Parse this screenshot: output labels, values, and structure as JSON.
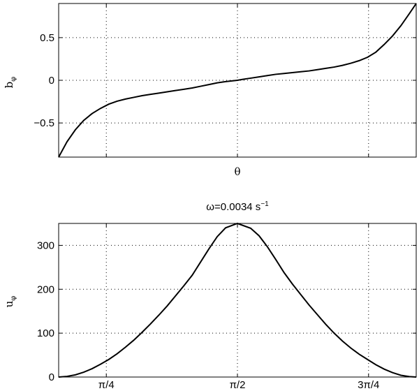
{
  "chart_data": [
    {
      "type": "line",
      "title": "",
      "xlabel": "θ",
      "ylabel_main": "b",
      "ylabel_sub": "φ",
      "xlim": [
        0.5,
        2.6416
      ],
      "ylim": [
        -0.9,
        0.9
      ],
      "xticks": [
        0.7854,
        1.5708,
        2.3562
      ],
      "xtick_labels": [],
      "yticks": [
        -0.5,
        0,
        0.5
      ],
      "ytick_labels": [
        "−0.5",
        "0",
        "0.5"
      ],
      "grid": true,
      "series": [
        {
          "x": [
            0.5,
            0.55,
            0.6,
            0.65,
            0.7,
            0.75,
            0.8,
            0.85,
            0.9,
            0.95,
            1.0,
            1.05,
            1.1,
            1.15,
            1.2,
            1.25,
            1.3,
            1.35,
            1.4,
            1.45,
            1.5,
            1.5708,
            1.6,
            1.65,
            1.7,
            1.75,
            1.8,
            1.85,
            1.9,
            1.95,
            2.0,
            2.05,
            2.1,
            2.15,
            2.2,
            2.25,
            2.3,
            2.35,
            2.4,
            2.45,
            2.5,
            2.55,
            2.6,
            2.6416
          ],
          "y": [
            -0.9,
            -0.72,
            -0.58,
            -0.47,
            -0.39,
            -0.33,
            -0.28,
            -0.245,
            -0.22,
            -0.2,
            -0.18,
            -0.165,
            -0.15,
            -0.135,
            -0.12,
            -0.105,
            -0.09,
            -0.07,
            -0.05,
            -0.03,
            -0.015,
            0.0,
            0.01,
            0.025,
            0.04,
            0.055,
            0.07,
            0.08,
            0.09,
            0.1,
            0.11,
            0.125,
            0.14,
            0.155,
            0.175,
            0.2,
            0.23,
            0.27,
            0.33,
            0.42,
            0.52,
            0.64,
            0.78,
            0.9
          ]
        }
      ]
    },
    {
      "type": "line",
      "title_prefix": "ω=0.0034 s",
      "title_sup": "−1",
      "xlabel": "",
      "ylabel_main": "u",
      "ylabel_sub": "φ",
      "xlim": [
        0.5,
        2.6416
      ],
      "ylim": [
        0,
        350
      ],
      "xticks": [
        0.7854,
        1.5708,
        2.3562
      ],
      "xtick_labels": [
        "π/4",
        "π/2",
        "3π/4"
      ],
      "yticks": [
        0,
        100,
        200,
        300
      ],
      "ytick_labels": [
        "0",
        "100",
        "200",
        "300"
      ],
      "grid": true,
      "series": [
        {
          "x": [
            0.5,
            0.55,
            0.6,
            0.65,
            0.7,
            0.75,
            0.8,
            0.85,
            0.9,
            0.95,
            1.0,
            1.05,
            1.1,
            1.15,
            1.2,
            1.25,
            1.3,
            1.35,
            1.4,
            1.45,
            1.5,
            1.5708,
            1.65,
            1.7,
            1.75,
            1.8,
            1.85,
            1.9,
            1.95,
            2.0,
            2.05,
            2.1,
            2.15,
            2.2,
            2.25,
            2.3,
            2.35,
            2.4,
            2.45,
            2.5,
            2.55,
            2.6,
            2.6416
          ],
          "y": [
            0,
            1.5,
            5,
            11,
            19,
            29,
            40,
            53,
            68,
            84,
            102,
            121,
            141,
            162,
            185,
            208,
            232,
            262,
            292,
            320,
            340,
            350,
            339,
            322,
            297,
            268,
            238,
            212,
            188,
            164,
            142,
            120,
            100,
            82,
            66,
            52,
            40,
            28,
            18,
            10,
            4,
            1,
            0
          ]
        }
      ]
    }
  ]
}
